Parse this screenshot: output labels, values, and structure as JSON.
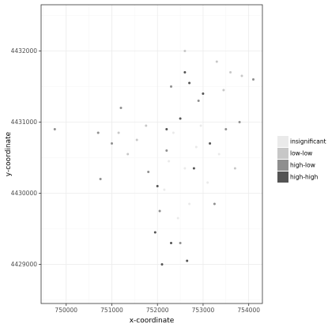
{
  "colors": {
    "panel_border": "#333333",
    "grid_major": "#ebebeb",
    "grid_minor": "#f5f5f5",
    "insignificant": "#eaeaea",
    "low-low": "#c7c7c7",
    "high-low": "#8f8f8f",
    "high-high": "#545454",
    "point_default": "#8a8a8a"
  },
  "chart_data": {
    "type": "scatter",
    "title": "",
    "xlabel": "x-coordinate",
    "ylabel": "y-coordinate",
    "xlim": [
      749450,
      754300
    ],
    "ylim": [
      4428450,
      4432650
    ],
    "x_ticks": [
      750000,
      751000,
      752000,
      753000,
      754000
    ],
    "y_ticks": [
      4429000,
      4430000,
      4431000,
      4432000
    ],
    "grid": true,
    "legend_position": "right",
    "legend_title": "",
    "legend": [
      "insignificant",
      "low-low",
      "high-low",
      "high-high"
    ],
    "series": [
      {
        "name": "insignificant",
        "points": [
          [
            752350,
            4430850
          ],
          [
            752600,
            4430350
          ],
          [
            752150,
            4430050
          ],
          [
            752850,
            4430650
          ],
          [
            752450,
            4429650
          ],
          [
            753100,
            4430150
          ],
          [
            752250,
            4430450
          ],
          [
            752950,
            4430950
          ],
          [
            752700,
            4429850
          ],
          [
            753350,
            4430550
          ]
        ]
      },
      {
        "name": "low-low",
        "points": [
          [
            751550,
            4430750
          ],
          [
            751350,
            4430550
          ],
          [
            751750,
            4430950
          ],
          [
            753300,
            4431850
          ],
          [
            753600,
            4431700
          ],
          [
            753850,
            4431650
          ],
          [
            753450,
            4431450
          ],
          [
            751150,
            4430850
          ],
          [
            753700,
            4430350
          ],
          [
            752600,
            4432000
          ]
        ]
      },
      {
        "name": "high-low",
        "points": [
          [
            749750,
            4430900
          ],
          [
            750700,
            4430850
          ],
          [
            751200,
            4431200
          ],
          [
            752200,
            4430600
          ],
          [
            752900,
            4431300
          ],
          [
            753500,
            4430900
          ],
          [
            751800,
            4430300
          ],
          [
            752500,
            4429300
          ],
          [
            753800,
            4431000
          ],
          [
            751000,
            4430700
          ],
          [
            752050,
            4429750
          ],
          [
            753250,
            4429850
          ],
          [
            750750,
            4430200
          ],
          [
            752300,
            4431500
          ],
          [
            754100,
            4431600
          ]
        ]
      },
      {
        "name": "high-high",
        "points": [
          [
            752100,
            4429000
          ],
          [
            752300,
            4429300
          ],
          [
            752600,
            4431700
          ],
          [
            752700,
            4431550
          ],
          [
            753000,
            4431400
          ],
          [
            752000,
            4430100
          ],
          [
            752200,
            4430900
          ],
          [
            752800,
            4430350
          ],
          [
            753150,
            4430700
          ],
          [
            752500,
            4431050
          ],
          [
            751950,
            4429450
          ],
          [
            752650,
            4429050
          ]
        ]
      }
    ]
  }
}
